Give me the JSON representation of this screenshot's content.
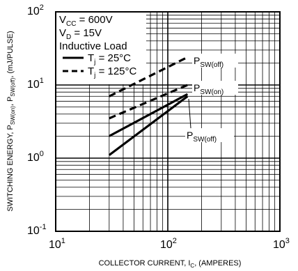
{
  "chart_data": {
    "type": "line",
    "x_scale": "log",
    "y_scale": "log",
    "xlim": [
      10,
      1000
    ],
    "ylim": [
      0.1,
      100
    ],
    "grid": true,
    "x_ticks": [
      {
        "base": "10",
        "exp": "1",
        "value": 10
      },
      {
        "base": "10",
        "exp": "2",
        "value": 100
      },
      {
        "base": "10",
        "exp": "3",
        "value": 1000
      }
    ],
    "y_ticks": [
      {
        "base": "10",
        "exp": "-1",
        "value": 0.1
      },
      {
        "base": "10",
        "exp": "0",
        "value": 1
      },
      {
        "base": "10",
        "exp": "1",
        "value": 10
      },
      {
        "base": "10",
        "exp": "2",
        "value": 100
      }
    ],
    "xlabel": {
      "main": "COLLECTOR CURRENT, I",
      "sub": "C",
      "tail": ", (AMPERES)"
    },
    "ylabel": {
      "p1": "SWITCHING ENERGY, P",
      "s1": "SW(on)",
      "p2": ", P",
      "s2": "SW(off)",
      "p3": ", (mJ/PULSE)"
    },
    "conditions": {
      "vcc_main": "V",
      "vcc_sub": "CC",
      "vcc_val": " = 600V",
      "vd_main": "V",
      "vd_sub": "D",
      "vd_val": " = 15V",
      "load": "Inductive Load"
    },
    "legend": [
      {
        "main": "T",
        "sub": "j",
        "val": " = 25°C",
        "style": "solid"
      },
      {
        "main": "T",
        "sub": "j",
        "val": " = 125°C",
        "style": "dashed"
      }
    ],
    "series": [
      {
        "style": "dashed",
        "temp": 125,
        "x": [
          30,
          150
        ],
        "y": [
          7.0,
          24.0
        ]
      },
      {
        "style": "dashed",
        "temp": 125,
        "x": [
          30,
          150
        ],
        "y": [
          3.5,
          10.0
        ]
      },
      {
        "style": "solid",
        "temp": 25,
        "x": [
          30,
          150
        ],
        "y": [
          2.0,
          7.5
        ]
      },
      {
        "style": "solid",
        "temp": 25,
        "x": [
          30,
          150
        ],
        "y": [
          1.1,
          7.0
        ]
      }
    ],
    "annotations": [
      {
        "main": "P",
        "sub": "SW(off)",
        "x": 150,
        "y": 24.0
      },
      {
        "main": "P",
        "sub": "SW(on)",
        "x": 150,
        "y": 10.0
      },
      {
        "main": "P",
        "sub": "SW(off)",
        "x": 150,
        "y": 7.0
      }
    ]
  }
}
